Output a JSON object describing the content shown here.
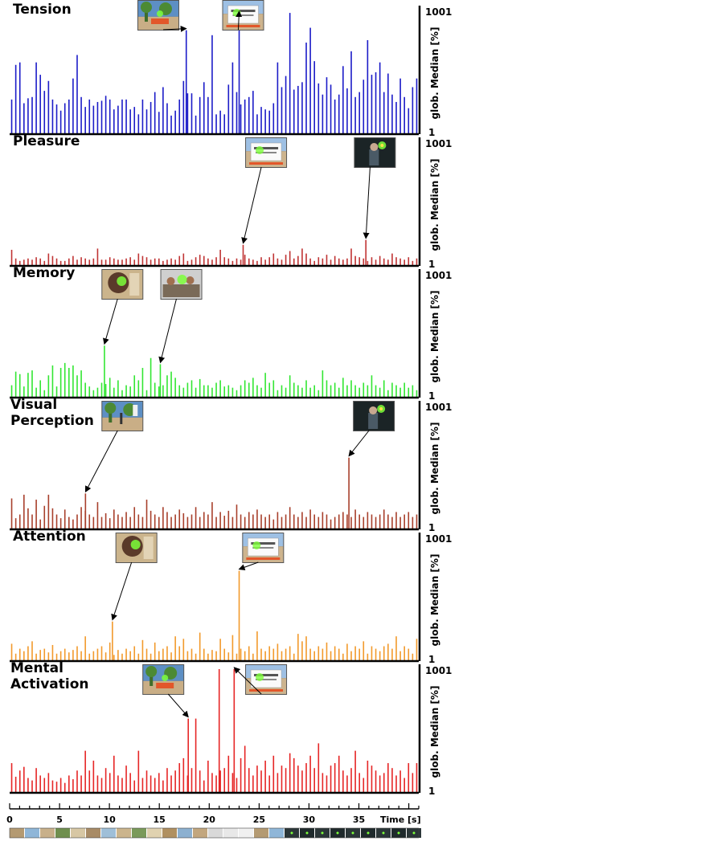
{
  "chart_data": {
    "type": "bar",
    "y_scale": "log",
    "y_tick_labels": [
      "1001",
      "1"
    ],
    "ylabel": "glob. Median [%]",
    "xlabel": "Time [s]",
    "xlim": [
      0,
      41
    ],
    "x_ticks": [
      0,
      5,
      10,
      15,
      20,
      25,
      30,
      35
    ],
    "panels": [
      {
        "name": "Tension",
        "title_lines": [
          "Tension"
        ],
        "color": "#1c1cc8",
        "peaks": [
          {
            "x": 17.7,
            "h": 0.84
          },
          {
            "x": 23.0,
            "h": 0.98
          }
        ],
        "thumbs": [
          {
            "x": 14.9,
            "type": "playground",
            "target": 0
          },
          {
            "x": 23.4,
            "type": "sign",
            "target": 1
          }
        ],
        "profile": [
          0.28,
          0.56,
          0.58,
          0.25,
          0.29,
          0.3,
          0.58,
          0.48,
          0.35,
          0.43,
          0.28,
          0.24,
          0.19,
          0.25,
          0.28,
          0.45,
          0.64,
          0.3,
          0.22,
          0.28,
          0.23,
          0.26,
          0.27,
          0.31,
          0.28,
          0.2,
          0.23,
          0.28,
          0.28,
          0.2,
          0.22,
          0.16,
          0.28,
          0.2,
          0.26,
          0.34,
          0.18,
          0.38,
          0.25,
          0.15,
          0.19,
          0.28,
          0.43,
          0.33,
          0.33,
          0.15,
          0.3,
          0.42,
          0.3,
          0.8,
          0.16,
          0.19,
          0.16,
          0.4,
          0.58,
          0.34,
          0.24,
          0.28,
          0.3,
          0.35,
          0.16,
          0.22,
          0.2,
          0.19,
          0.25,
          0.58,
          0.38,
          0.47,
          0.98,
          0.36,
          0.39,
          0.42,
          0.74,
          0.86,
          0.59,
          0.41,
          0.32,
          0.46,
          0.4,
          0.28,
          0.32,
          0.55,
          0.37,
          0.67,
          0.3,
          0.34,
          0.44,
          0.76,
          0.48,
          0.5,
          0.58,
          0.34,
          0.49,
          0.32,
          0.26,
          0.45,
          0.3,
          0.21,
          0.38,
          0.45
        ]
      },
      {
        "name": "Pleasure",
        "title_lines": [
          "Pleasure"
        ],
        "color": "#c03434",
        "peaks": [
          {
            "x": 23.4,
            "h": 0.17
          },
          {
            "x": 35.7,
            "h": 0.21
          }
        ],
        "thumbs": [
          {
            "x": 25.7,
            "type": "sign",
            "target": 0
          },
          {
            "x": 36.6,
            "type": "dark",
            "target": 1
          }
        ],
        "profile": [
          0.13,
          0.06,
          0.04,
          0.05,
          0.06,
          0.05,
          0.07,
          0.06,
          0.04,
          0.1,
          0.08,
          0.06,
          0.04,
          0.04,
          0.06,
          0.08,
          0.05,
          0.07,
          0.06,
          0.05,
          0.06,
          0.14,
          0.05,
          0.05,
          0.07,
          0.06,
          0.05,
          0.05,
          0.06,
          0.07,
          0.05,
          0.1,
          0.08,
          0.07,
          0.05,
          0.06,
          0.06,
          0.04,
          0.05,
          0.06,
          0.05,
          0.08,
          0.1,
          0.04,
          0.05,
          0.07,
          0.09,
          0.08,
          0.06,
          0.05,
          0.07,
          0.13,
          0.07,
          0.06,
          0.04,
          0.06,
          0.05,
          0.09,
          0.06,
          0.05,
          0.04,
          0.07,
          0.05,
          0.07,
          0.1,
          0.06,
          0.05,
          0.09,
          0.12,
          0.06,
          0.08,
          0.14,
          0.1,
          0.06,
          0.04,
          0.07,
          0.06,
          0.09,
          0.05,
          0.08,
          0.06,
          0.05,
          0.06,
          0.14,
          0.08,
          0.07,
          0.06,
          0.04,
          0.07,
          0.05,
          0.08,
          0.06,
          0.05,
          0.1,
          0.07,
          0.06,
          0.05,
          0.07,
          0.04,
          0.06
        ]
      },
      {
        "name": "Memory",
        "title_lines": [
          "Memory"
        ],
        "color": "#33e633",
        "peaks": [
          {
            "x": 9.5,
            "h": 0.42
          },
          {
            "x": 15.1,
            "h": 0.27
          }
        ],
        "thumbs": [
          {
            "x": 11.3,
            "type": "face",
            "target": 0
          },
          {
            "x": 17.2,
            "type": "crowd",
            "target": 1
          }
        ],
        "profile": [
          0.1,
          0.21,
          0.19,
          0.09,
          0.2,
          0.22,
          0.08,
          0.14,
          0.06,
          0.18,
          0.26,
          0.09,
          0.24,
          0.28,
          0.24,
          0.26,
          0.18,
          0.22,
          0.12,
          0.09,
          0.06,
          0.08,
          0.12,
          0.11,
          0.16,
          0.08,
          0.14,
          0.06,
          0.1,
          0.09,
          0.18,
          0.14,
          0.24,
          0.06,
          0.32,
          0.12,
          0.09,
          0.1,
          0.18,
          0.21,
          0.16,
          0.1,
          0.08,
          0.12,
          0.14,
          0.08,
          0.15,
          0.1,
          0.1,
          0.08,
          0.12,
          0.14,
          0.09,
          0.1,
          0.08,
          0.06,
          0.1,
          0.14,
          0.12,
          0.16,
          0.1,
          0.08,
          0.2,
          0.12,
          0.14,
          0.06,
          0.1,
          0.08,
          0.18,
          0.12,
          0.1,
          0.08,
          0.14,
          0.08,
          0.1,
          0.06,
          0.22,
          0.14,
          0.1,
          0.12,
          0.08,
          0.16,
          0.1,
          0.14,
          0.1,
          0.08,
          0.12,
          0.1,
          0.18,
          0.1,
          0.08,
          0.14,
          0.06,
          0.12,
          0.1,
          0.08,
          0.12,
          0.08,
          0.1,
          0.06
        ]
      },
      {
        "name": "Visual Perception",
        "title_lines": [
          "Visual",
          "Perception"
        ],
        "color": "#a8402c",
        "peaks": [
          {
            "x": 7.6,
            "h": 0.29
          },
          {
            "x": 34.0,
            "h": 0.58
          }
        ],
        "thumbs": [
          {
            "x": 11.3,
            "type": "trees",
            "target": 0
          },
          {
            "x": 36.5,
            "type": "dark",
            "target": 1
          }
        ],
        "profile": [
          0.25,
          0.09,
          0.12,
          0.28,
          0.17,
          0.12,
          0.24,
          0.08,
          0.19,
          0.28,
          0.17,
          0.12,
          0.09,
          0.16,
          0.1,
          0.08,
          0.12,
          0.18,
          0.15,
          0.12,
          0.1,
          0.22,
          0.1,
          0.13,
          0.09,
          0.16,
          0.12,
          0.1,
          0.14,
          0.1,
          0.18,
          0.12,
          0.1,
          0.24,
          0.15,
          0.12,
          0.1,
          0.18,
          0.14,
          0.1,
          0.12,
          0.16,
          0.13,
          0.1,
          0.12,
          0.18,
          0.1,
          0.14,
          0.12,
          0.22,
          0.1,
          0.14,
          0.11,
          0.15,
          0.1,
          0.2,
          0.12,
          0.1,
          0.14,
          0.12,
          0.16,
          0.12,
          0.1,
          0.12,
          0.08,
          0.14,
          0.1,
          0.12,
          0.18,
          0.12,
          0.1,
          0.14,
          0.1,
          0.16,
          0.12,
          0.1,
          0.14,
          0.12,
          0.08,
          0.1,
          0.12,
          0.14,
          0.12,
          0.1,
          0.16,
          0.12,
          0.1,
          0.14,
          0.12,
          0.1,
          0.12,
          0.16,
          0.12,
          0.1,
          0.14,
          0.1,
          0.12,
          0.14,
          0.1,
          0.12
        ]
      },
      {
        "name": "Attention",
        "title_lines": [
          "Attention"
        ],
        "color": "#f29a2c",
        "peaks": [
          {
            "x": 10.3,
            "h": 0.32
          },
          {
            "x": 23.0,
            "h": 0.73
          }
        ],
        "thumbs": [
          {
            "x": 12.7,
            "type": "face",
            "target": 0
          },
          {
            "x": 25.4,
            "type": "sign",
            "target": 1
          }
        ],
        "profile": [
          0.14,
          0.06,
          0.1,
          0.08,
          0.12,
          0.16,
          0.06,
          0.09,
          0.1,
          0.07,
          0.13,
          0.06,
          0.08,
          0.1,
          0.07,
          0.09,
          0.12,
          0.08,
          0.2,
          0.06,
          0.08,
          0.1,
          0.12,
          0.07,
          0.15,
          0.05,
          0.09,
          0.06,
          0.1,
          0.08,
          0.12,
          0.06,
          0.17,
          0.1,
          0.06,
          0.15,
          0.08,
          0.1,
          0.12,
          0.07,
          0.2,
          0.12,
          0.18,
          0.08,
          0.1,
          0.06,
          0.23,
          0.1,
          0.06,
          0.09,
          0.08,
          0.18,
          0.1,
          0.07,
          0.21,
          0.06,
          0.1,
          0.08,
          0.12,
          0.06,
          0.24,
          0.1,
          0.08,
          0.12,
          0.1,
          0.14,
          0.08,
          0.1,
          0.12,
          0.06,
          0.22,
          0.16,
          0.2,
          0.1,
          0.08,
          0.12,
          0.1,
          0.15,
          0.08,
          0.12,
          0.1,
          0.06,
          0.14,
          0.08,
          0.12,
          0.1,
          0.16,
          0.06,
          0.12,
          0.1,
          0.08,
          0.12,
          0.14,
          0.1,
          0.2,
          0.08,
          0.12,
          0.1,
          0.06,
          0.18
        ]
      },
      {
        "name": "Mental Activation",
        "title_lines": [
          "Mental",
          "Activation"
        ],
        "color": "#e62626",
        "peaks": [
          {
            "x": 17.9,
            "h": 0.6
          },
          {
            "x": 21.0,
            "h": 1.0
          },
          {
            "x": 22.5,
            "h": 1.0
          }
        ],
        "thumbs": [
          {
            "x": 15.4,
            "type": "playground",
            "target": 0
          },
          {
            "x": 25.7,
            "type": "sign",
            "target": 2
          }
        ],
        "profile": [
          0.24,
          0.13,
          0.18,
          0.21,
          0.12,
          0.1,
          0.2,
          0.14,
          0.12,
          0.16,
          0.1,
          0.09,
          0.12,
          0.08,
          0.14,
          0.11,
          0.18,
          0.14,
          0.34,
          0.18,
          0.26,
          0.14,
          0.12,
          0.2,
          0.16,
          0.3,
          0.14,
          0.12,
          0.22,
          0.16,
          0.1,
          0.34,
          0.12,
          0.18,
          0.14,
          0.12,
          0.16,
          0.1,
          0.2,
          0.14,
          0.18,
          0.24,
          0.28,
          0.14,
          0.2,
          0.6,
          0.18,
          0.1,
          0.26,
          0.16,
          0.14,
          0.18,
          0.2,
          0.3,
          0.16,
          0.12,
          0.28,
          0.38,
          0.2,
          0.14,
          0.22,
          0.18,
          0.26,
          0.14,
          0.3,
          0.16,
          0.22,
          0.2,
          0.32,
          0.28,
          0.22,
          0.18,
          0.24,
          0.3,
          0.2,
          0.4,
          0.16,
          0.14,
          0.22,
          0.24,
          0.3,
          0.18,
          0.14,
          0.2,
          0.34,
          0.16,
          0.12,
          0.26,
          0.22,
          0.18,
          0.14,
          0.16,
          0.24,
          0.2,
          0.14,
          0.18,
          0.12,
          0.24,
          0.16,
          0.24
        ]
      }
    ]
  }
}
